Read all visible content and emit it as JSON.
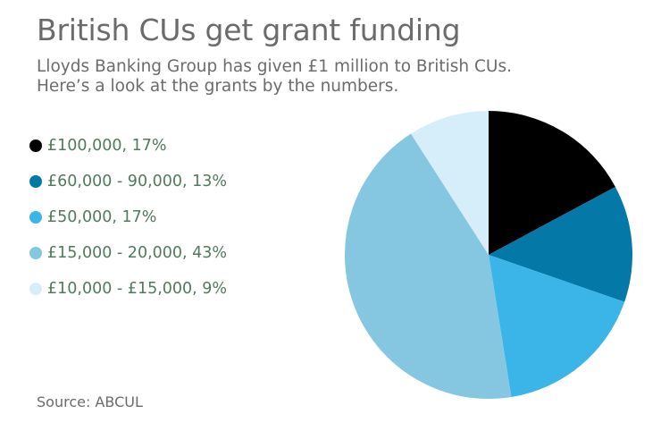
{
  "header": {
    "title": "British CUs get grant funding",
    "subtitle_line1": "Lloyds Banking Group has given £1 million to British CUs.",
    "subtitle_line2": "Here’s a look at the grants by the numbers."
  },
  "legend": {
    "items": [
      {
        "label": "£100,000, 17%",
        "color": "#000000"
      },
      {
        "label": "£60,000 - 90,000, 13%",
        "color": "#0479a8"
      },
      {
        "label": "£50,000, 17%",
        "color": "#3bb5e7"
      },
      {
        "label": "£15,000 - 20,000, 43%",
        "color": "#85c6e0"
      },
      {
        "label": "£10,000 - £15,000, 9%",
        "color": "#d6eef9"
      }
    ]
  },
  "footer": {
    "source": "Source: ABCUL"
  },
  "chart_data": {
    "type": "pie",
    "title": "British CUs get grant funding",
    "subtitle": "Lloyds Banking Group has given £1 million to British CUs. Here’s a look at the grants by the numbers.",
    "legend_position": "left",
    "slices": [
      {
        "label": "£100,000",
        "value": 17,
        "color": "#000000"
      },
      {
        "label": "£60,000 - 90,000",
        "value": 13,
        "color": "#0479a8"
      },
      {
        "label": "£50,000",
        "value": 17,
        "color": "#3bb5e7"
      },
      {
        "label": "£15,000 - 20,000",
        "value": 43,
        "color": "#85c6e0"
      },
      {
        "label": "£10,000 - £15,000",
        "value": 9,
        "color": "#d6eef9"
      }
    ],
    "start_angle": "12 o'clock",
    "direction": "clockwise"
  }
}
